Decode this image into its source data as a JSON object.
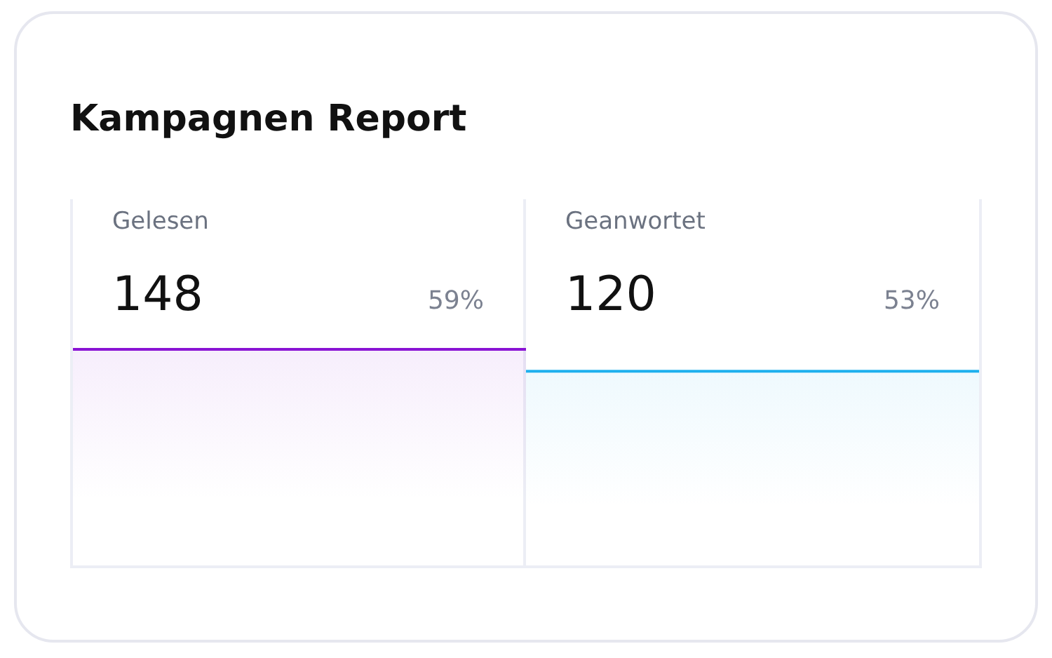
{
  "chart_data": [
    {
      "type": "other",
      "title": "Kampagnen Report",
      "categories": [
        "Gelesen"
      ],
      "data_labels": true,
      "series": [
        {
          "values": [
            148
          ]
        },
        {
          "values": [
            59
          ],
          "value_labels": [
            "59%"
          ]
        }
      ],
      "colors": [
        "#8a14d4"
      ]
    },
    {
      "type": "other",
      "categories": [
        "Geanwortet"
      ],
      "data_labels": true,
      "series": [
        {
          "values": [
            120
          ]
        },
        {
          "values": [
            53
          ],
          "value_labels": [
            "53%"
          ]
        }
      ],
      "colors": [
        "#1eb0ee"
      ]
    }
  ]
}
